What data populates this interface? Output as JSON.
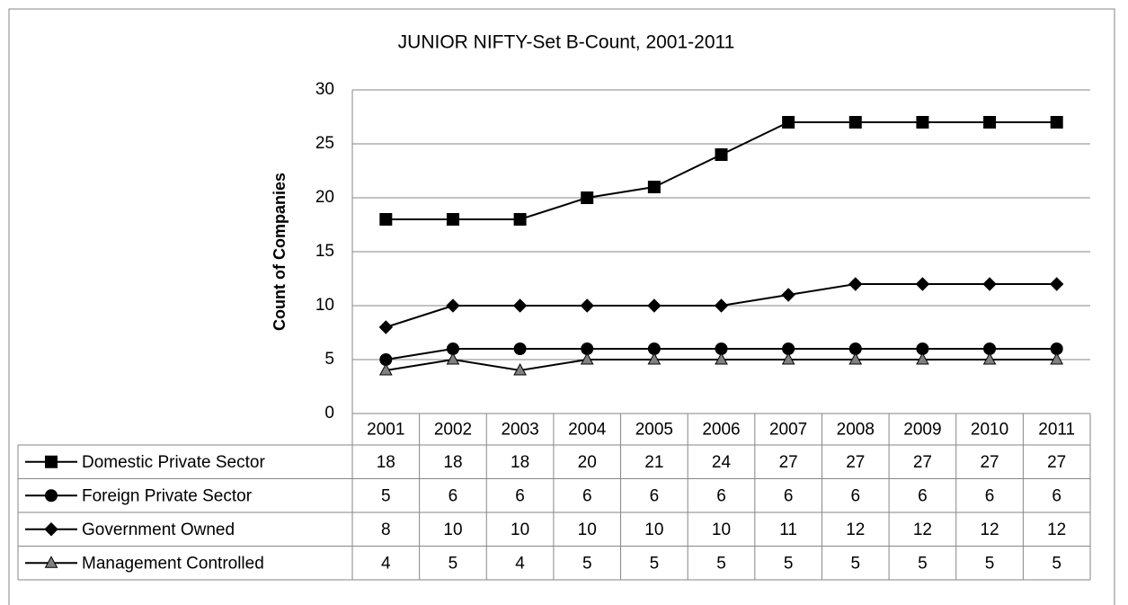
{
  "chart_data": {
    "type": "line",
    "title": "JUNIOR NIFTY-Set B-Count, 2001-2011",
    "y_label": "Count of Companies",
    "categories": [
      "2001",
      "2002",
      "2003",
      "2004",
      "2005",
      "2006",
      "2007",
      "2008",
      "2009",
      "2010",
      "2011"
    ],
    "series": [
      {
        "name": "Domestic Private Sector",
        "color": "#000000",
        "marker": "square",
        "values": [
          18,
          18,
          18,
          20,
          21,
          24,
          27,
          27,
          27,
          27,
          27
        ]
      },
      {
        "name": "Foreign Private Sector",
        "color": "#000000",
        "marker": "circle",
        "values": [
          5,
          6,
          6,
          6,
          6,
          6,
          6,
          6,
          6,
          6,
          6
        ]
      },
      {
        "name": "Government Owned",
        "color": "#000000",
        "marker": "diamond",
        "values": [
          8,
          10,
          10,
          10,
          10,
          10,
          11,
          12,
          12,
          12,
          12
        ]
      },
      {
        "name": "Management Controlled",
        "color": "#000000",
        "marker": "triangle",
        "values": [
          4,
          5,
          4,
          5,
          5,
          5,
          5,
          5,
          5,
          5,
          5
        ]
      }
    ],
    "ylim": [
      0,
      30
    ],
    "yticks": [
      0,
      5,
      10,
      15,
      20,
      25,
      30
    ],
    "grid": true
  }
}
